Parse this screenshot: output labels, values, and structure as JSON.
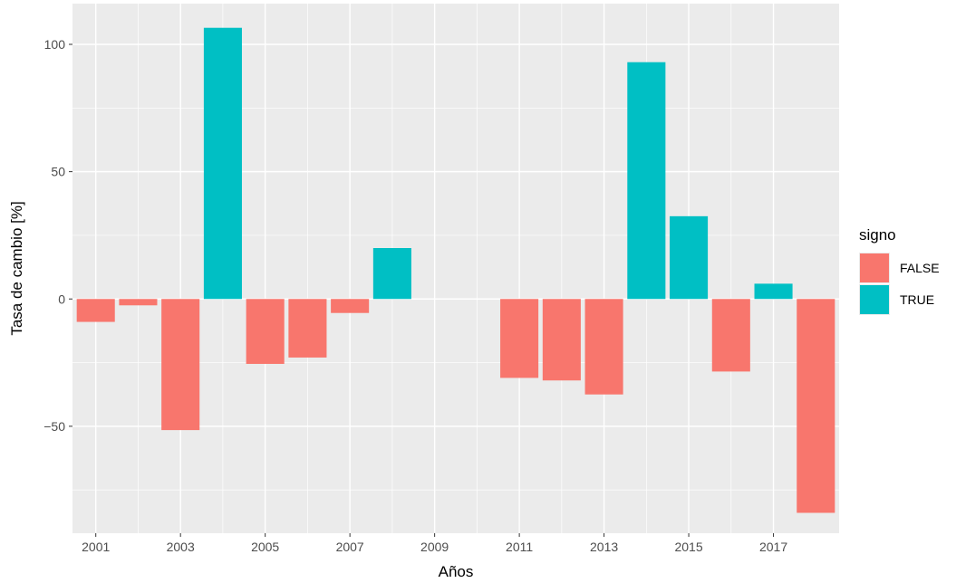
{
  "chart_data": {
    "type": "bar",
    "title": "",
    "xlabel": "Años",
    "ylabel": "Tasa de cambio [%]",
    "x": [
      2001,
      2002,
      2003,
      2004,
      2005,
      2006,
      2007,
      2008,
      2009,
      2010,
      2011,
      2012,
      2013,
      2014,
      2015,
      2016,
      2017,
      2018
    ],
    "values": [
      -9,
      -2.5,
      -51.5,
      106.5,
      -25.5,
      -23,
      -5.5,
      20,
      null,
      null,
      -31,
      -32,
      -37.5,
      93,
      32.5,
      -28.5,
      6,
      -84
    ],
    "signo": [
      "FALSE",
      "FALSE",
      "FALSE",
      "TRUE",
      "FALSE",
      "FALSE",
      "FALSE",
      "TRUE",
      null,
      null,
      "FALSE",
      "FALSE",
      "FALSE",
      "TRUE",
      "TRUE",
      "FALSE",
      "TRUE",
      "FALSE"
    ],
    "xticks": [
      2001,
      2003,
      2005,
      2007,
      2009,
      2011,
      2013,
      2015,
      2017
    ],
    "yticks": [
      -50,
      0,
      50,
      100
    ],
    "ylim": [
      -92,
      116
    ],
    "xlim": [
      2000.45,
      2018.55
    ],
    "grid": true,
    "legend": {
      "title": "signo",
      "position": "right",
      "entries": [
        {
          "label": "FALSE",
          "color": "#F8766D"
        },
        {
          "label": "TRUE",
          "color": "#00BFC4"
        }
      ]
    },
    "colors": {
      "FALSE": "#F8766D",
      "TRUE": "#00BFC4",
      "panel": "#EBEBEB",
      "grid": "#FFFFFF"
    }
  }
}
